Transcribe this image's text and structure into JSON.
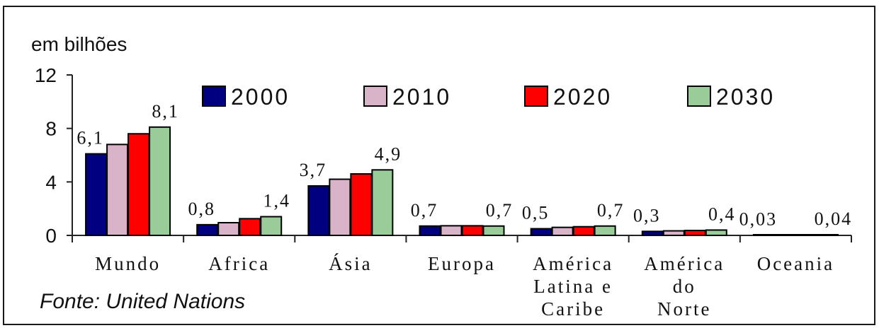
{
  "chart_data": {
    "type": "bar",
    "unit_label": "em bilhões",
    "source": "Fonte:  United Nations",
    "ylim": [
      0,
      12
    ],
    "yticks": [
      "0",
      "4",
      "8",
      "12"
    ],
    "ytick_values": [
      0,
      4,
      8,
      12
    ],
    "grid": false,
    "legend_position": "top",
    "categories": [
      [
        "Mundo"
      ],
      [
        "Africa"
      ],
      [
        "Ásia"
      ],
      [
        "Europa"
      ],
      [
        "América",
        "Latina e",
        "Caribe"
      ],
      [
        "América",
        "do",
        "Norte"
      ],
      [
        "Oceania"
      ]
    ],
    "series": [
      {
        "name": "2000",
        "color": "#000080",
        "values": [
          6.1,
          0.8,
          3.7,
          0.7,
          0.5,
          0.3,
          0.03
        ]
      },
      {
        "name": "2010",
        "color": "#d9b3c7",
        "values": [
          6.8,
          0.95,
          4.2,
          0.72,
          0.6,
          0.34,
          0.035
        ]
      },
      {
        "name": "2020",
        "color": "#ff0000",
        "values": [
          7.6,
          1.25,
          4.6,
          0.72,
          0.65,
          0.37,
          0.038
        ]
      },
      {
        "name": "2030",
        "color": "#99cc99",
        "values": [
          8.1,
          1.4,
          4.9,
          0.7,
          0.7,
          0.4,
          0.04
        ]
      }
    ],
    "data_labels": [
      [
        "6,1",
        "8,1"
      ],
      [
        "0,8",
        "1,4"
      ],
      [
        "3,7",
        "4,9"
      ],
      [
        "0,7",
        "0,7"
      ],
      [
        "0,5",
        "0,7"
      ],
      [
        "0,3",
        "0,4"
      ],
      [
        "0,03",
        "0,04"
      ]
    ]
  }
}
